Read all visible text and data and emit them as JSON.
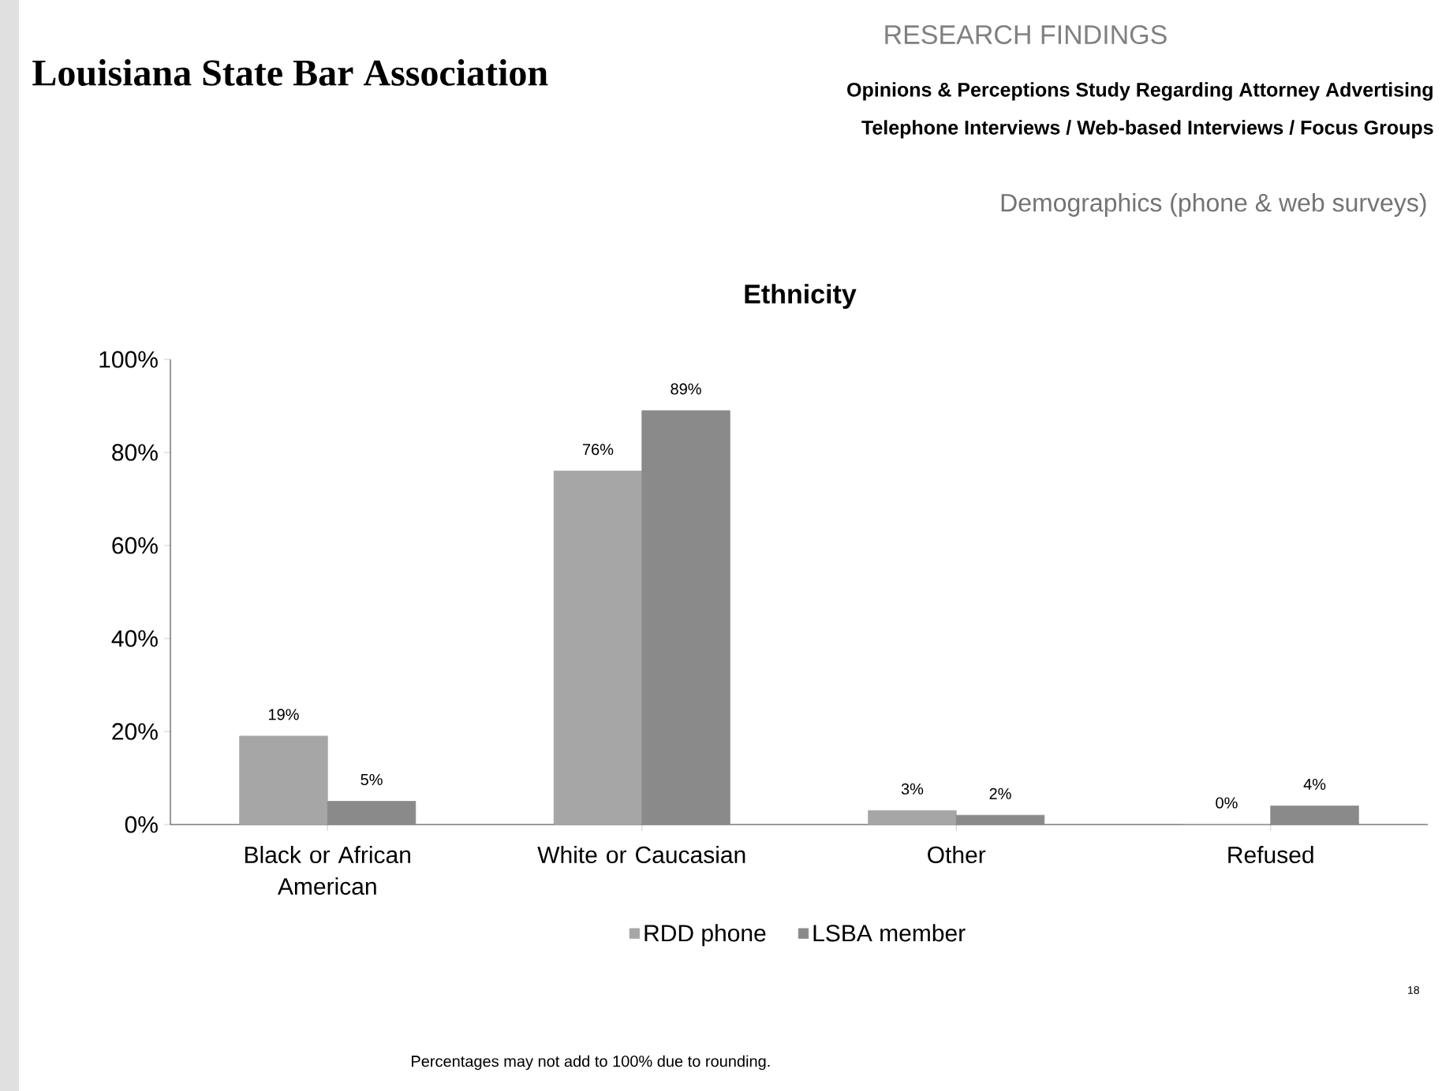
{
  "chart_data": {
    "type": "bar",
    "title": "Ethnicity",
    "subtitle": "Demographics (phone & web surveys)",
    "annotations": [
      "Louisiana State Bar Association",
      "RESEARCH FINDINGS",
      "Opinions & Perceptions Study Regarding Attorney Advertising",
      "Telephone Interviews / Web-based Interviews / Focus Groups",
      "Percentages may not add to 100% due to rounding.",
      "18"
    ],
    "categories": [
      "Black or African American",
      "White or Caucasian",
      "Other",
      "Refused"
    ],
    "series": [
      {
        "name": "RDD phone",
        "color": "#a6a6a6",
        "values": [
          19,
          76,
          3,
          0
        ],
        "value_labels": [
          "19%",
          "76%",
          "3%",
          "0%"
        ]
      },
      {
        "name": "LSBA member",
        "color": "#8a8a8a",
        "values": [
          5,
          89,
          2,
          4
        ],
        "value_labels": [
          "5%",
          "89%",
          "2%",
          "4%"
        ]
      }
    ],
    "ylim": [
      0,
      100
    ],
    "yticks": [
      {
        "value": 0,
        "label": "0%"
      },
      {
        "value": 20,
        "label": "20%"
      },
      {
        "value": 40,
        "label": "40%"
      },
      {
        "value": 60,
        "label": "60%"
      },
      {
        "value": 80,
        "label": "80%"
      },
      {
        "value": 100,
        "label": "100%"
      }
    ],
    "legend": "bottom",
    "grid": false
  }
}
